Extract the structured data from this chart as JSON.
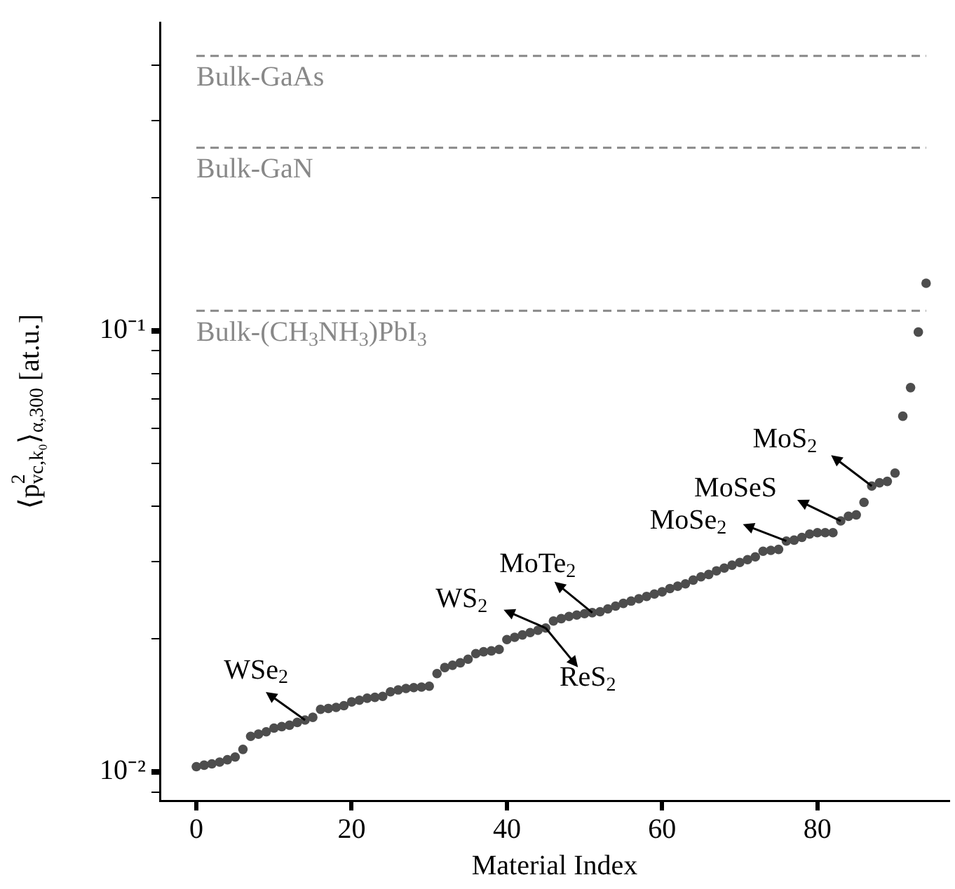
{
  "chart_data": {
    "type": "scatter",
    "xlabel": "Material Index",
    "ylabel": "⟨p$^{2}$$_{vc,k₀}$⟩$_{α,300}$ [at.u.]",
    "x": [
      0,
      1,
      2,
      3,
      4,
      5,
      6,
      7,
      8,
      9,
      10,
      11,
      12,
      13,
      14,
      15,
      16,
      17,
      18,
      19,
      20,
      21,
      22,
      23,
      24,
      25,
      26,
      27,
      28,
      29,
      30,
      31,
      32,
      33,
      34,
      35,
      36,
      37,
      38,
      39,
      40,
      41,
      42,
      43,
      44,
      45,
      46,
      47,
      48,
      49,
      50,
      51,
      52,
      53,
      54,
      55,
      56,
      57,
      58,
      59,
      60,
      61,
      62,
      63,
      64,
      65,
      66,
      67,
      68,
      69,
      70,
      71,
      72,
      73,
      74,
      75,
      76,
      77,
      78,
      79,
      80,
      81,
      82,
      83,
      84,
      85,
      86,
      87,
      88,
      89,
      90,
      91,
      92,
      93,
      94
    ],
    "series": [
      {
        "color": "#4d4d4d",
        "values": [
          0.01027,
          0.01035,
          0.01042,
          0.01052,
          0.01065,
          0.0108,
          0.01124,
          0.01203,
          0.01217,
          0.01232,
          0.01256,
          0.01266,
          0.01275,
          0.01294,
          0.0131,
          0.01329,
          0.01385,
          0.01392,
          0.01399,
          0.01412,
          0.0144,
          0.01453,
          0.01468,
          0.01475,
          0.01482,
          0.01518,
          0.01533,
          0.01545,
          0.01552,
          0.01556,
          0.01563,
          0.0167,
          0.01723,
          0.01744,
          0.01766,
          0.018,
          0.01853,
          0.01871,
          0.0188,
          0.01894,
          0.01994,
          0.02018,
          0.02043,
          0.02068,
          0.02093,
          0.02118,
          0.02197,
          0.02224,
          0.0225,
          0.02267,
          0.02283,
          0.02295,
          0.02306,
          0.0234,
          0.02375,
          0.02409,
          0.02438,
          0.02468,
          0.02498,
          0.02529,
          0.02559,
          0.02603,
          0.02635,
          0.02667,
          0.0272,
          0.02767,
          0.02801,
          0.02855,
          0.02897,
          0.0294,
          0.02983,
          0.03027,
          0.03071,
          0.03162,
          0.03177,
          0.03193,
          0.03335,
          0.03352,
          0.034,
          0.03459,
          0.03484,
          0.03484,
          0.03484,
          0.03704,
          0.03795,
          0.03823,
          0.04083,
          0.04445,
          0.04521,
          0.04554,
          0.04756,
          0.064,
          0.0743,
          0.0993,
          0.1281
        ]
      }
    ],
    "log": "y",
    "marker": "circle",
    "grid": false,
    "legend": false,
    "xlim": [
      -4.7,
      97
    ],
    "xticks": [
      0,
      20,
      40,
      60,
      80
    ],
    "ylim": [
      0.0086,
      0.5
    ],
    "yticks": [
      {
        "value": 0.009,
        "label": null
      },
      {
        "value": 0.01,
        "label": "10⁻²"
      },
      {
        "value": 0.02,
        "label": null
      },
      {
        "value": 0.03,
        "label": null
      },
      {
        "value": 0.04,
        "label": null
      },
      {
        "value": 0.05,
        "label": null
      },
      {
        "value": 0.06,
        "label": null
      },
      {
        "value": 0.07,
        "label": null
      },
      {
        "value": 0.08,
        "label": null
      },
      {
        "value": 0.09,
        "label": null
      },
      {
        "value": 0.1,
        "label": "10⁻¹"
      },
      {
        "value": 0.2,
        "label": null
      },
      {
        "value": 0.3,
        "label": null
      },
      {
        "value": 0.4,
        "label": null
      }
    ],
    "ref_lines": [
      {
        "axis": "y",
        "value": 0.42,
        "label": "Bulk-GaAs",
        "color": "#888888",
        "line_style": "dashed"
      },
      {
        "axis": "y",
        "value": 0.26,
        "label": "Bulk-GaN",
        "color": "#888888",
        "line_style": "dashed"
      },
      {
        "axis": "y",
        "value": 0.111,
        "label": "Bulk-(CH$_{3}$NH$_{3}$)PbI$_{3}$",
        "color": "#888888",
        "line_style": "dashed"
      }
    ],
    "annotations": [
      {
        "text": "WSe$_{2}$",
        "x": 14,
        "y": 0.0131
      },
      {
        "text": "WS$_{2}$",
        "x": 45,
        "y": 0.02118
      },
      {
        "text": "ReS$_{2}$",
        "x": 45,
        "y": 0.02118
      },
      {
        "text": "MoTe$_{2}$",
        "x": 51,
        "y": 0.02295
      },
      {
        "text": "MoSe$_{2}$",
        "x": 76,
        "y": 0.03335
      },
      {
        "text": "MoSeS",
        "x": 83,
        "y": 0.03704
      },
      {
        "text": "MoS$_{2}$",
        "x": 87,
        "y": 0.04445
      }
    ]
  }
}
